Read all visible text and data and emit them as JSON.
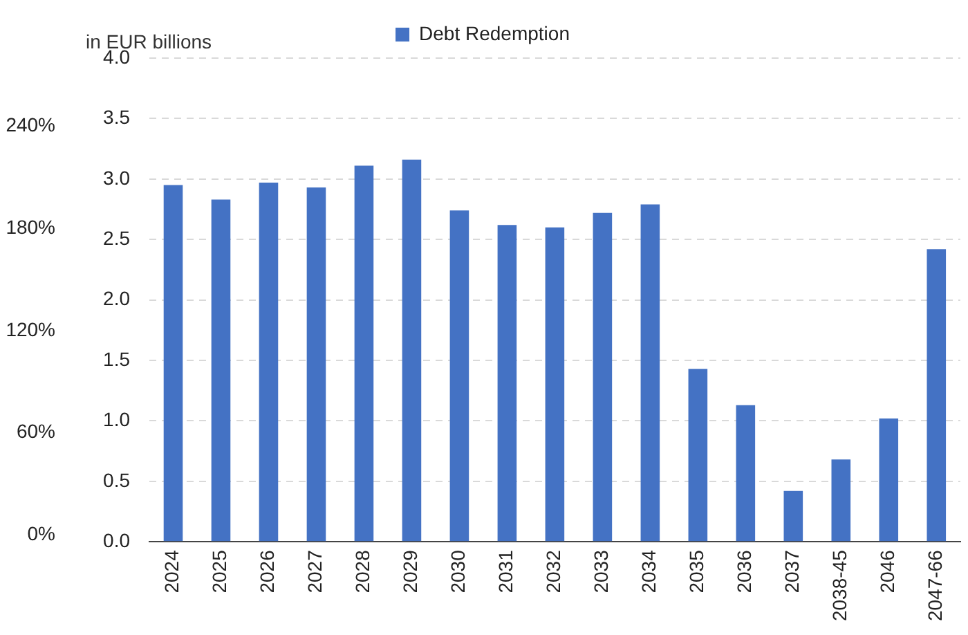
{
  "chart_data": {
    "type": "bar",
    "ylabel": "in EUR billions",
    "categories": [
      "2024",
      "2025",
      "2026",
      "2027",
      "2028",
      "2029",
      "2030",
      "2031",
      "2032",
      "2033",
      "2034",
      "2035",
      "2036",
      "2037",
      "2038-45",
      "2046",
      "2047-66"
    ],
    "series": [
      {
        "name": "Debt Redemption",
        "color": "#4472c4",
        "values": [
          2.95,
          2.83,
          2.97,
          2.93,
          3.11,
          3.16,
          2.74,
          2.62,
          2.6,
          2.72,
          2.79,
          1.43,
          1.13,
          0.42,
          0.68,
          1.02,
          2.42
        ]
      }
    ],
    "ylim": [
      0,
      4
    ],
    "yticks": [
      {
        "value": 0,
        "label": "0.0"
      },
      {
        "value": 0.5,
        "label": "0.5"
      },
      {
        "value": 1,
        "label": "1.0"
      },
      {
        "value": 1.5,
        "label": "1.5"
      },
      {
        "value": 2,
        "label": "2.0"
      },
      {
        "value": 2.5,
        "label": "2.5"
      },
      {
        "value": 3,
        "label": "3.0"
      },
      {
        "value": 3.5,
        "label": "3.5"
      },
      {
        "value": 4,
        "label": "4.0"
      }
    ],
    "y2lim": [
      -4,
      280
    ],
    "y2ticks": [
      {
        "value": 0,
        "label": "0%"
      },
      {
        "value": 60,
        "label": "60%"
      },
      {
        "value": 120,
        "label": "120%"
      },
      {
        "value": 180,
        "label": "180%"
      },
      {
        "value": 240,
        "label": "240%"
      }
    ],
    "grid": "y",
    "legend": "top"
  }
}
